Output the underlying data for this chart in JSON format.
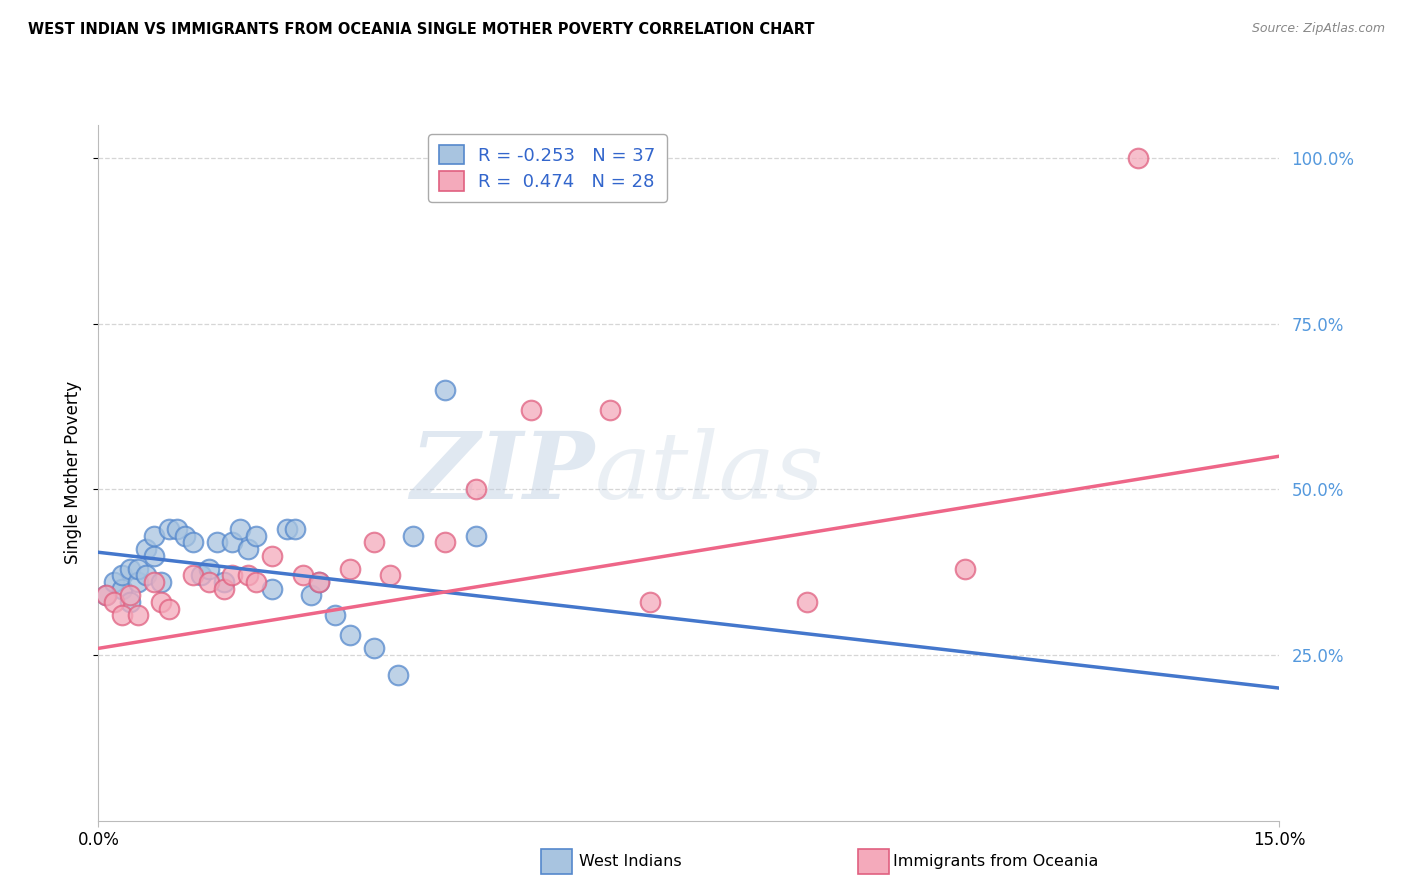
{
  "title": "WEST INDIAN VS IMMIGRANTS FROM OCEANIA SINGLE MOTHER POVERTY CORRELATION CHART",
  "source": "Source: ZipAtlas.com",
  "ylabel": "Single Mother Poverty",
  "right_yticks": [
    "100.0%",
    "75.0%",
    "50.0%",
    "25.0%"
  ],
  "right_ytick_vals": [
    1.0,
    0.75,
    0.5,
    0.25
  ],
  "legend_blue_label": "West Indians",
  "legend_pink_label": "Immigrants from Oceania",
  "legend_blue_text": "R = -0.253   N = 37",
  "legend_pink_text": "R =  0.474   N = 28",
  "watermark_zip": "ZIP",
  "watermark_atlas": "atlas",
  "xlim": [
    0.0,
    0.15
  ],
  "ylim": [
    0.0,
    1.05
  ],
  "blue_fill": "#A8C4E0",
  "blue_edge": "#5588CC",
  "pink_fill": "#F4AABB",
  "pink_edge": "#E06080",
  "blue_line": "#4477CC",
  "pink_line": "#EE6688",
  "blue_scatter_x": [
    0.001,
    0.002,
    0.003,
    0.003,
    0.004,
    0.004,
    0.005,
    0.005,
    0.006,
    0.006,
    0.007,
    0.007,
    0.008,
    0.009,
    0.01,
    0.011,
    0.012,
    0.013,
    0.014,
    0.015,
    0.016,
    0.017,
    0.018,
    0.019,
    0.02,
    0.022,
    0.024,
    0.025,
    0.027,
    0.028,
    0.03,
    0.032,
    0.035,
    0.038,
    0.04,
    0.044,
    0.048
  ],
  "blue_scatter_y": [
    0.34,
    0.36,
    0.35,
    0.37,
    0.33,
    0.38,
    0.36,
    0.38,
    0.37,
    0.41,
    0.4,
    0.43,
    0.36,
    0.44,
    0.44,
    0.43,
    0.42,
    0.37,
    0.38,
    0.42,
    0.36,
    0.42,
    0.44,
    0.41,
    0.43,
    0.35,
    0.44,
    0.44,
    0.34,
    0.36,
    0.31,
    0.28,
    0.26,
    0.22,
    0.43,
    0.65,
    0.43
  ],
  "pink_scatter_x": [
    0.001,
    0.002,
    0.003,
    0.004,
    0.005,
    0.007,
    0.008,
    0.009,
    0.012,
    0.014,
    0.016,
    0.017,
    0.019,
    0.02,
    0.022,
    0.026,
    0.028,
    0.032,
    0.035,
    0.037,
    0.044,
    0.048,
    0.055,
    0.065,
    0.07,
    0.09,
    0.11,
    0.132
  ],
  "pink_scatter_y": [
    0.34,
    0.33,
    0.31,
    0.34,
    0.31,
    0.36,
    0.33,
    0.32,
    0.37,
    0.36,
    0.35,
    0.37,
    0.37,
    0.36,
    0.4,
    0.37,
    0.36,
    0.38,
    0.42,
    0.37,
    0.42,
    0.5,
    0.62,
    0.62,
    0.33,
    0.33,
    0.38,
    1.0
  ],
  "blue_trend_x": [
    0.0,
    0.15
  ],
  "blue_trend_y": [
    0.405,
    0.2
  ],
  "pink_trend_x": [
    0.0,
    0.15
  ],
  "pink_trend_y": [
    0.26,
    0.55
  ],
  "grid_color": "#CCCCCC",
  "bg_color": "#FFFFFF"
}
